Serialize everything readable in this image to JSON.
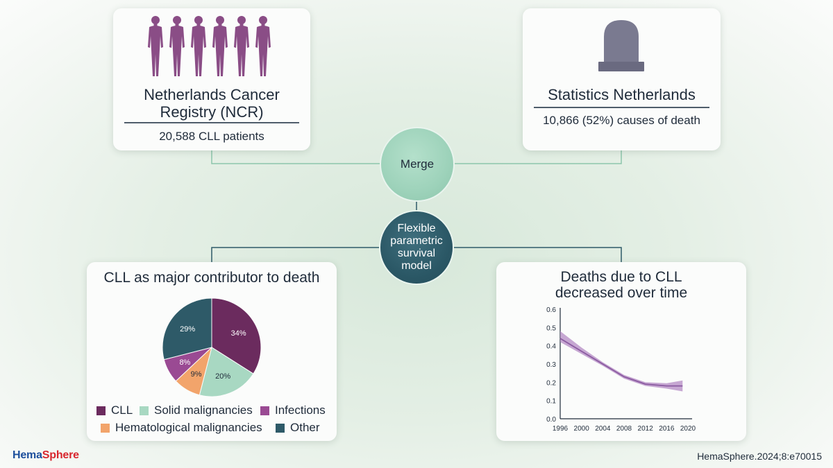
{
  "sources": {
    "ncr": {
      "title_line1": "Netherlands Cancer",
      "title_line2": "Registry (NCR)",
      "subtitle": "20,588 CLL patients",
      "icon": "people-group-icon"
    },
    "stats": {
      "title": "Statistics Netherlands",
      "subtitle": "10,866 (52%) causes of death",
      "icon": "tombstone-icon"
    }
  },
  "merge_label": "Merge",
  "model_label_lines": [
    "Flexible",
    "parametric",
    "survival",
    "model"
  ],
  "colors": {
    "cll": "#6b2b5e",
    "solid": "#a8d8c2",
    "infections": "#9a4a93",
    "hematological": "#f2a46b",
    "other": "#2e5a68",
    "band": "#b48bc4",
    "line": "#8a5aa0"
  },
  "chart_data": [
    {
      "type": "pie",
      "title": "CLL as major contributor to death",
      "slices": [
        {
          "label": "CLL",
          "value": 34,
          "text": "34%"
        },
        {
          "label": "Solid malignancies",
          "value": 20,
          "text": "20%"
        },
        {
          "label": "Hematological malignancies",
          "value": 9,
          "text": "9%"
        },
        {
          "label": "Infections",
          "value": 8,
          "text": "8%"
        },
        {
          "label": "Other",
          "value": 29,
          "text": "29%"
        }
      ],
      "legend_row1": [
        "CLL",
        "Solid malignancies",
        "Infections"
      ],
      "legend_row2": [
        "Hematological malignancies",
        "Other"
      ],
      "legend_position": "bottom"
    },
    {
      "type": "line",
      "title_line1": "Deaths due to CLL",
      "title_line2": "decreased over time",
      "x_ticks": [
        "1996",
        "2000",
        "2004",
        "2008",
        "2012",
        "2016",
        "2020"
      ],
      "y_ticks": [
        "0.0",
        "0.1",
        "0.2",
        "0.3",
        "0.4",
        "0.5",
        "0.6"
      ],
      "xlim": [
        1996,
        2020
      ],
      "ylim": [
        0,
        0.6
      ],
      "grid": false,
      "x": [
        1996,
        2000,
        2004,
        2008,
        2012,
        2016,
        2019
      ],
      "y": [
        0.44,
        0.37,
        0.3,
        0.23,
        0.19,
        0.18,
        0.18
      ],
      "y_lower": [
        0.42,
        0.355,
        0.29,
        0.22,
        0.18,
        0.165,
        0.15
      ],
      "y_upper": [
        0.48,
        0.39,
        0.31,
        0.24,
        0.2,
        0.195,
        0.21
      ]
    }
  ],
  "footer": {
    "logo_part1": "Hema",
    "logo_part2": "Sphere",
    "citation": "HemaSphere.2024;8:e70015"
  }
}
